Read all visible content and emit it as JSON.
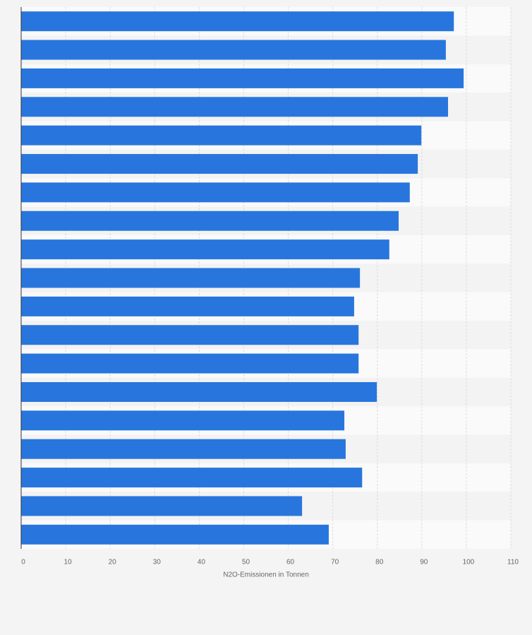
{
  "chart_data": {
    "type": "barh",
    "x_label": "N2O-Emissionen in Tonnen",
    "categories": [
      null,
      null,
      null,
      null,
      null,
      null,
      null,
      null,
      null,
      null,
      null,
      null,
      null,
      null,
      null,
      null,
      null,
      null,
      null
    ],
    "values": [
      97.2,
      95.4,
      99.4,
      95.9,
      89.9,
      89.1,
      87.3,
      84.8,
      82.7,
      76.1,
      74.8,
      75.8,
      75.8,
      79.9,
      72.6,
      72.9,
      76.6,
      63.1,
      69.1
    ],
    "color": "#2876dd",
    "xlim": [
      0,
      110
    ],
    "xticks": [
      0,
      10,
      20,
      30,
      40,
      50,
      60,
      70,
      80,
      90,
      100,
      110
    ],
    "grid": true
  }
}
